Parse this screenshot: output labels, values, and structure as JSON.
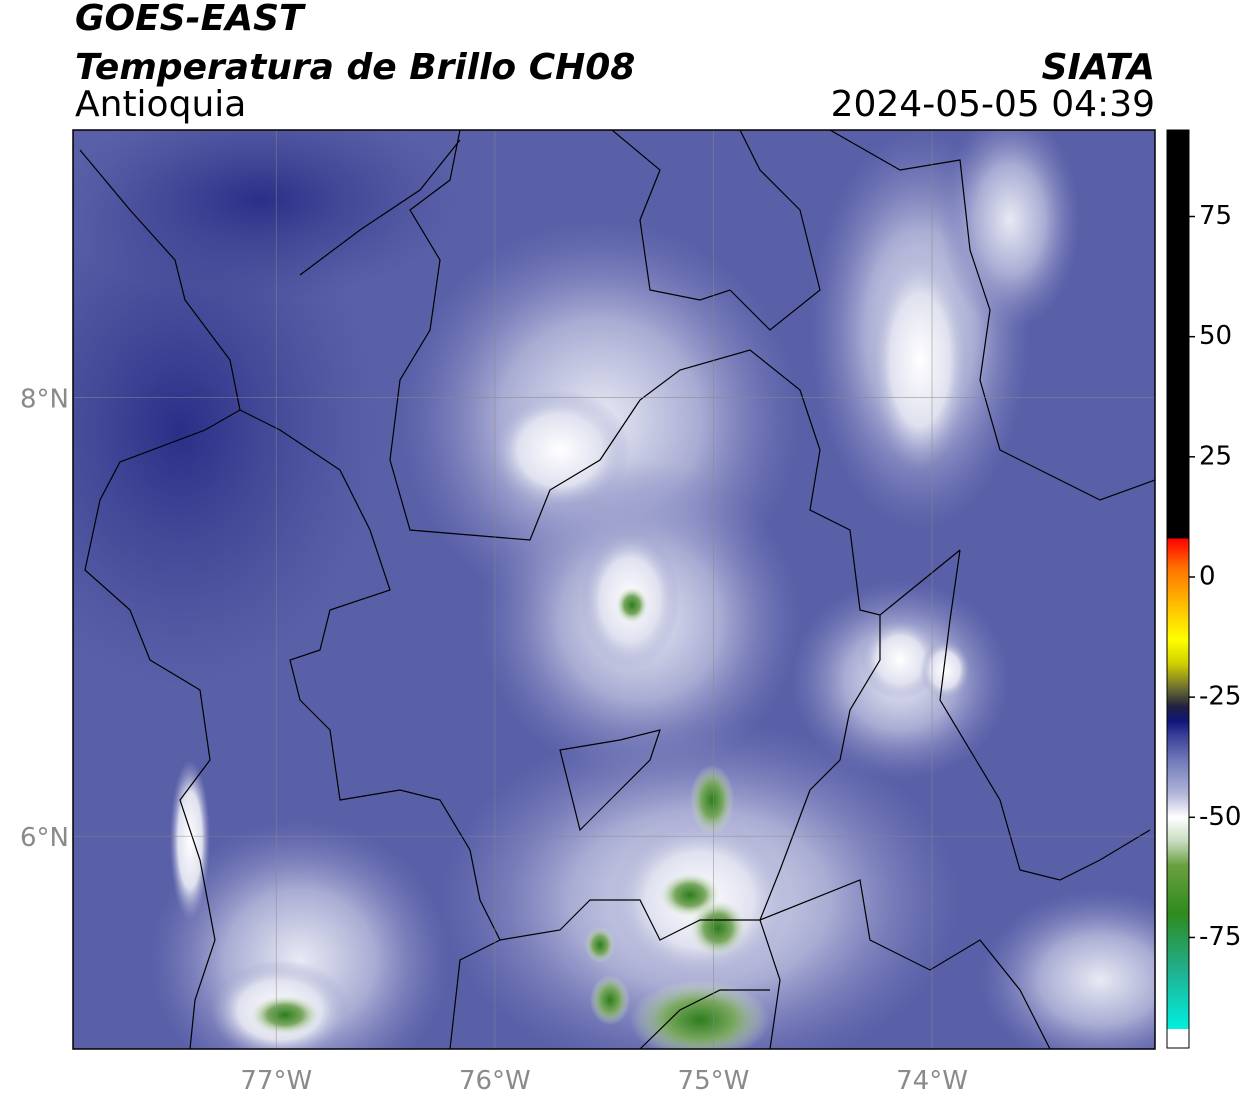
{
  "header": {
    "title": "GOES-EAST",
    "subtitle": "Temperatura de Brillo CH08",
    "region": "Antioquia",
    "source": "SIATA",
    "datetime": "2024-05-05 04:39"
  },
  "map": {
    "xlim": [
      -77.93,
      -72.98
    ],
    "ylim": [
      5.03,
      9.22
    ],
    "xticks": [
      {
        "value": -77,
        "label": "77°W"
      },
      {
        "value": -76,
        "label": "76°W"
      },
      {
        "value": -75,
        "label": "75°W"
      },
      {
        "value": -74,
        "label": "74°W"
      }
    ],
    "yticks": [
      {
        "value": 6,
        "label": "6°N"
      },
      {
        "value": 8,
        "label": "8°N"
      }
    ],
    "grid": true
  },
  "colorbar": {
    "lim": [
      -98,
      93
    ],
    "ticks": [
      -75,
      -50,
      -25,
      0,
      25,
      50,
      75
    ],
    "stops": [
      {
        "value": -98,
        "color": "#ffffff"
      },
      {
        "value": -94,
        "color": "#ffffff"
      },
      {
        "value": -94,
        "color": "#00f0e0"
      },
      {
        "value": -82,
        "color": "#20b090"
      },
      {
        "value": -70,
        "color": "#2e8b1e"
      },
      {
        "value": -60,
        "color": "#6aa040"
      },
      {
        "value": -55,
        "color": "#c8dcc0"
      },
      {
        "value": -50,
        "color": "#ffffff"
      },
      {
        "value": -45,
        "color": "#b0b4d8"
      },
      {
        "value": -38,
        "color": "#7078b8"
      },
      {
        "value": -33,
        "color": "#3a3f98"
      },
      {
        "value": -30,
        "color": "#10157a"
      },
      {
        "value": -27,
        "color": "#202040"
      },
      {
        "value": -23,
        "color": "#707030"
      },
      {
        "value": -18,
        "color": "#d0d000"
      },
      {
        "value": -13,
        "color": "#ffff00"
      },
      {
        "value": -6,
        "color": "#ffc000"
      },
      {
        "value": 2,
        "color": "#ff7000"
      },
      {
        "value": 8,
        "color": "#ff0000"
      },
      {
        "value": 8,
        "color": "#000000"
      },
      {
        "value": 93,
        "color": "#000000"
      }
    ]
  }
}
